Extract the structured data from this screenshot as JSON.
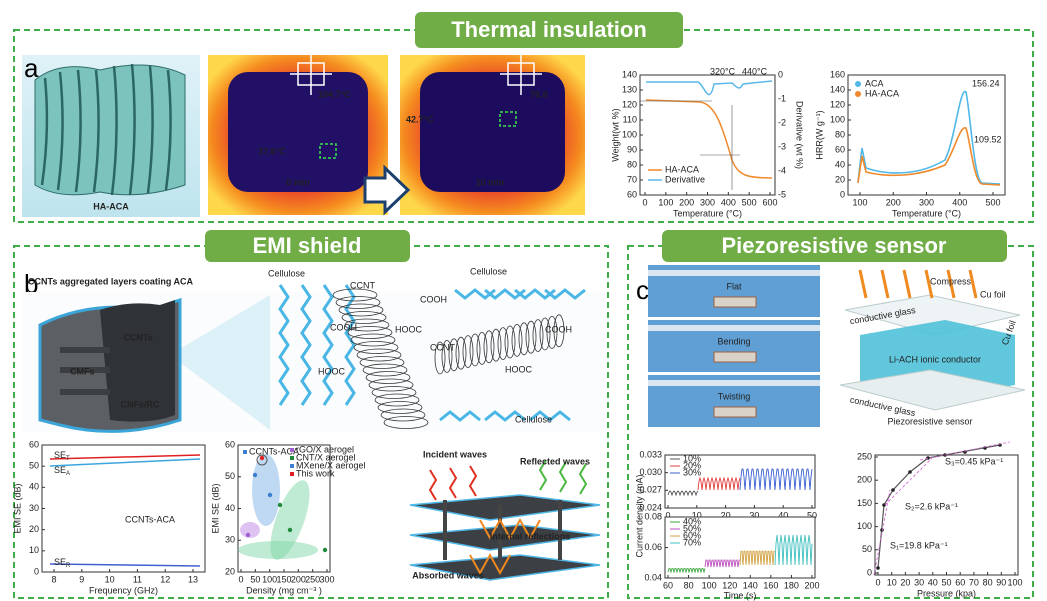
{
  "thermal": {
    "title": "Thermal insulation",
    "label": "a",
    "sample": "HA-ACA",
    "ir": [
      {
        "hot": "104.7°C",
        "cold": "37.6°C",
        "time": "0 min"
      },
      {
        "hot": "76.8",
        "cold": "42.7°C",
        "time": "10 min"
      }
    ],
    "tga": {
      "x_label": "Temperature (°C)",
      "y_label": "Weight(wt %)",
      "y2_label": "Derivative (wt %)",
      "xticks": [
        "0",
        "100",
        "200",
        "300",
        "400",
        "500",
        "600"
      ],
      "yticks": [
        "60",
        "70",
        "80",
        "90",
        "100",
        "110",
        "120",
        "130",
        "140"
      ],
      "y2ticks": [
        "-5",
        "-4",
        "-3",
        "-2",
        "-1",
        "0"
      ],
      "peaks": [
        "320°C",
        "440°C"
      ],
      "legend": [
        "HA-ACA",
        "Derivative"
      ]
    },
    "hrr": {
      "x_label": "Temperature (°C)",
      "y_label": "HRR(W g⁻¹)",
      "xticks": [
        "100",
        "200",
        "300",
        "400",
        "500"
      ],
      "yticks": [
        "0",
        "20",
        "40",
        "60",
        "80",
        "100",
        "120",
        "140",
        "160"
      ],
      "legend": [
        "ACA",
        "HA-ACA"
      ],
      "peaks": [
        "156.24",
        "109.52"
      ]
    }
  },
  "emi": {
    "title": "EMI shield",
    "label": "b",
    "heading": "CCNTs aggregated layers coating ACA",
    "parts": [
      "CCNTs",
      "CMFs",
      "CNFs/RC"
    ],
    "molecules": {
      "cellulose": "Cellulose",
      "ccnt": "CCNT",
      "cooh": "COOH",
      "hooc": "HOOC"
    },
    "se_chart": {
      "x_label": "Frequency (GHz)",
      "y_label": "EMI SE (dB)",
      "xticks": [
        "8",
        "9",
        "10",
        "11",
        "12",
        "13"
      ],
      "yticks": [
        "0",
        "10",
        "20",
        "30",
        "40",
        "50",
        "60"
      ],
      "curves": [
        {
          "main": "SE",
          "sub": "T"
        },
        {
          "main": "SE",
          "sub": "A"
        },
        {
          "main": "SE",
          "sub": "R"
        }
      ],
      "sample": "CCNTs-ACA"
    },
    "compare": {
      "x_label": "Density (mg cm⁻³ )",
      "y_label": "EMI SE (dB)",
      "xticks": [
        "0",
        "50",
        "100",
        "150",
        "200",
        "250",
        "300"
      ],
      "yticks": [
        "20",
        "30",
        "40",
        "50",
        "60"
      ],
      "legend": [
        "CCNTs-ACA",
        "rGO/X aerogel",
        "CNT/X aerogel",
        "MXene/X aerogel",
        "This work"
      ]
    },
    "waves": [
      "Incident waves",
      "Reflected waves",
      "Internal reflections",
      "Absorbed waves"
    ]
  },
  "piezo": {
    "title": "Piezoresistive sensor",
    "label": "c",
    "states": [
      "Flat",
      "Bending",
      "Twisting"
    ],
    "device": {
      "compress": "Compress",
      "cu_foil": "Cu foil",
      "glass": "conductive glass",
      "conductor": "Li-ACH ionic conductor",
      "caption": "Piezoresistive sensor"
    },
    "current": {
      "y_label": "Current density (mA)",
      "x_label": "Time (s)",
      "top": {
        "xticks": [
          "0",
          "10",
          "20",
          "30",
          "40",
          "50"
        ],
        "yticks": [
          "0.024",
          "0.027",
          "0.030",
          "0.033"
        ],
        "legend": [
          "10%",
          "20%",
          "30%"
        ]
      },
      "bottom": {
        "xticks": [
          "60",
          "80",
          "100",
          "120",
          "140",
          "160",
          "180",
          "200"
        ],
        "yticks": [
          "0.04",
          "0.06",
          "0.08"
        ],
        "legend": [
          "40%",
          "50%",
          "60%",
          "70%"
        ]
      }
    },
    "pressure": {
      "x_label": "Pressure (kpa)",
      "xticks": [
        "0",
        "10",
        "20",
        "30",
        "40",
        "50",
        "60",
        "70",
        "80",
        "90",
        "100"
      ],
      "yticks": [
        "0",
        "50",
        "100",
        "150",
        "200",
        "250"
      ],
      "slopes": [
        "S₃=0.45 kPa⁻¹",
        "S₂=2.6 kPa⁻¹",
        "S₁=19.8 kPa⁻¹"
      ]
    }
  }
}
